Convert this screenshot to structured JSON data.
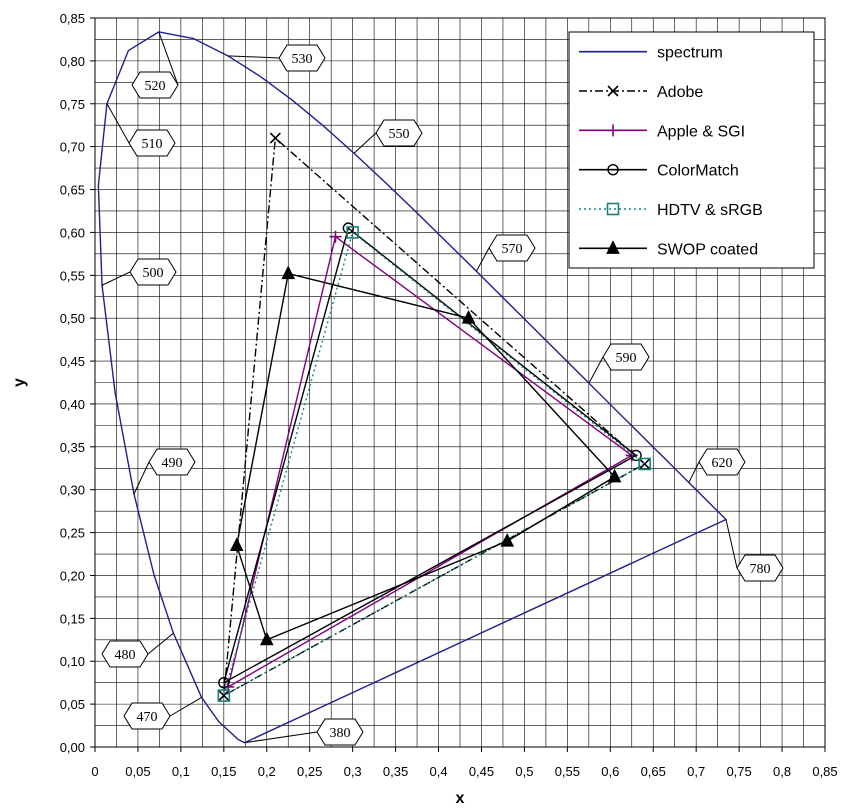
{
  "chart_data": {
    "type": "line",
    "xlabel": "x",
    "ylabel": "y",
    "xlim": [
      0,
      0.85
    ],
    "ylim": [
      0,
      0.85
    ],
    "x_ticks": [
      "0",
      "0,05",
      "0,1",
      "0,15",
      "0,2",
      "0,25",
      "0,3",
      "0,35",
      "0,4",
      "0,45",
      "0,5",
      "0,55",
      "0,6",
      "0,65",
      "0,7",
      "0,75",
      "0,8",
      "0,85"
    ],
    "y_ticks": [
      "0,00",
      "0,05",
      "0,10",
      "0,15",
      "0,20",
      "0,25",
      "0,30",
      "0,35",
      "0,40",
      "0,45",
      "0,50",
      "0,55",
      "0,60",
      "0,65",
      "0,70",
      "0,75",
      "0,80",
      "0,85"
    ],
    "grid": true,
    "grid_step": 0.025,
    "legend_position": "top-right",
    "series": [
      {
        "name": "spectrum",
        "color": "#1f1f8f",
        "marker": "none",
        "dash": "solid",
        "points": [
          [
            0.1741,
            0.005
          ],
          [
            0.1666,
            0.0089
          ],
          [
            0.144,
            0.0297
          ],
          [
            0.1241,
            0.0578
          ],
          [
            0.0913,
            0.1327
          ],
          [
            0.0687,
            0.2007
          ],
          [
            0.0454,
            0.295
          ],
          [
            0.0235,
            0.4127
          ],
          [
            0.0082,
            0.5384
          ],
          [
            0.0039,
            0.6548
          ],
          [
            0.0139,
            0.7502
          ],
          [
            0.0389,
            0.812
          ],
          [
            0.0743,
            0.8338
          ],
          [
            0.1142,
            0.8262
          ],
          [
            0.1547,
            0.8059
          ],
          [
            0.1929,
            0.7816
          ],
          [
            0.2296,
            0.7543
          ],
          [
            0.2658,
            0.7243
          ],
          [
            0.3016,
            0.6923
          ],
          [
            0.3373,
            0.6589
          ],
          [
            0.3731,
            0.6245
          ],
          [
            0.4087,
            0.5896
          ],
          [
            0.4441,
            0.5547
          ],
          [
            0.4788,
            0.5202
          ],
          [
            0.5125,
            0.4866
          ],
          [
            0.5448,
            0.4544
          ],
          [
            0.5752,
            0.4242
          ],
          [
            0.6029,
            0.3965
          ],
          [
            0.627,
            0.3725
          ],
          [
            0.6482,
            0.3514
          ],
          [
            0.6658,
            0.334
          ],
          [
            0.6801,
            0.3197
          ],
          [
            0.6915,
            0.3083
          ],
          [
            0.7006,
            0.2993
          ],
          [
            0.7079,
            0.292
          ],
          [
            0.714,
            0.2859
          ],
          [
            0.719,
            0.2809
          ],
          [
            0.7347,
            0.2653
          ],
          [
            0.1741,
            0.005
          ]
        ]
      },
      {
        "name": "Adobe",
        "color": "#000000",
        "marker": "x",
        "dash": "dashdot",
        "points": [
          [
            0.64,
            0.33
          ],
          [
            0.21,
            0.71
          ],
          [
            0.15,
            0.06
          ],
          [
            0.64,
            0.33
          ]
        ]
      },
      {
        "name": "Apple & SGI",
        "color": "#800080",
        "marker": "plus",
        "dash": "solid",
        "points": [
          [
            0.625,
            0.34
          ],
          [
            0.28,
            0.595
          ],
          [
            0.155,
            0.07
          ],
          [
            0.625,
            0.34
          ]
        ]
      },
      {
        "name": "ColorMatch",
        "color": "#000000",
        "marker": "circle",
        "dash": "solid",
        "points": [
          [
            0.63,
            0.34
          ],
          [
            0.295,
            0.605
          ],
          [
            0.15,
            0.075
          ],
          [
            0.63,
            0.34
          ]
        ]
      },
      {
        "name": "HDTV & sRGB",
        "color": "#1a8080",
        "marker": "square",
        "dash": "dotted",
        "points": [
          [
            0.64,
            0.33
          ],
          [
            0.3,
            0.6
          ],
          [
            0.15,
            0.06
          ],
          [
            0.64,
            0.33
          ]
        ]
      },
      {
        "name": "SWOP coated",
        "color": "#000000",
        "marker": "triangle",
        "dash": "solid",
        "points": [
          [
            0.605,
            0.315
          ],
          [
            0.48,
            0.24
          ],
          [
            0.2,
            0.125
          ],
          [
            0.165,
            0.235
          ],
          [
            0.225,
            0.552
          ],
          [
            0.435,
            0.5
          ],
          [
            0.605,
            0.315
          ]
        ]
      }
    ],
    "wavelength_labels": [
      {
        "text": "380",
        "point": [
          0.1741,
          0.005
        ]
      },
      {
        "text": "470",
        "point": [
          0.1241,
          0.0578
        ]
      },
      {
        "text": "480",
        "point": [
          0.0913,
          0.1327
        ]
      },
      {
        "text": "490",
        "point": [
          0.0454,
          0.295
        ]
      },
      {
        "text": "500",
        "point": [
          0.0082,
          0.5384
        ]
      },
      {
        "text": "510",
        "point": [
          0.0139,
          0.7502
        ]
      },
      {
        "text": "520",
        "point": [
          0.0743,
          0.8338
        ]
      },
      {
        "text": "530",
        "point": [
          0.1547,
          0.8059
        ]
      },
      {
        "text": "550",
        "point": [
          0.3016,
          0.6923
        ]
      },
      {
        "text": "570",
        "point": [
          0.4441,
          0.5547
        ]
      },
      {
        "text": "590",
        "point": [
          0.5752,
          0.4242
        ]
      },
      {
        "text": "620",
        "point": [
          0.6915,
          0.3083
        ]
      },
      {
        "text": "780",
        "point": [
          0.7347,
          0.2653
        ]
      }
    ]
  }
}
